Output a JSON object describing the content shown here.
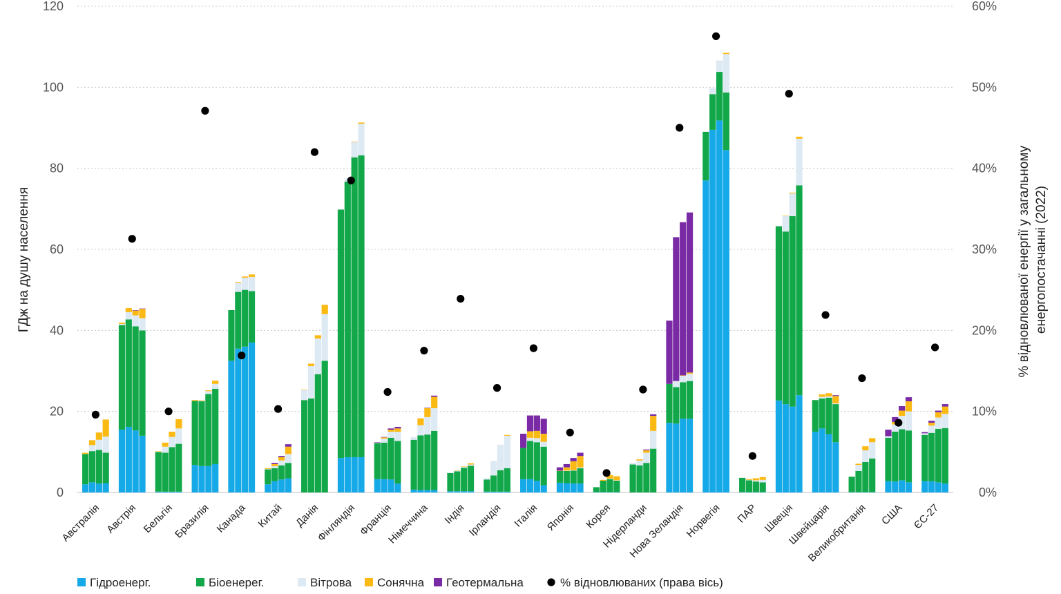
{
  "chart_data": {
    "type": "bar",
    "stacked": true,
    "ylabel": "ГДж на душу населення",
    "ylabel_right": [
      "% відновлюваної енергії у загальному",
      "енергопостачанні (2022)"
    ],
    "ylim": [
      0,
      120
    ],
    "yticks": [
      "0",
      "20",
      "40",
      "60",
      "80",
      "100",
      "120"
    ],
    "y2lim": [
      0,
      60
    ],
    "y2ticks": [
      "0%",
      "10%",
      "20%",
      "30%",
      "40%",
      "50%",
      "60%"
    ],
    "grid": true,
    "legend_position": "bottom",
    "colors": {
      "hydro": "#16a9e8",
      "bio": "#12a84a",
      "wind": "#dde9f3",
      "solar": "#fbb913",
      "geo": "#7a2aa5",
      "share": "#000000"
    },
    "legend": [
      {
        "key": "hydro",
        "label": "Гідроенерг."
      },
      {
        "key": "bio",
        "label": "Біоенерег."
      },
      {
        "key": "wind",
        "label": "Вітрова"
      },
      {
        "key": "solar",
        "label": "Сонячна"
      },
      {
        "key": "geo",
        "label": "Геотермальна"
      },
      {
        "key": "share",
        "label": "% відновлюваних (права вісь)"
      }
    ],
    "countries": [
      {
        "name": "Австралія",
        "share": 9.6,
        "bars": [
          {
            "hydro": 2,
            "bio": 7.5,
            "wind": 0,
            "solar": 0.3,
            "geo": 0
          },
          {
            "hydro": 2.5,
            "bio": 7.7,
            "wind": 1.5,
            "solar": 1.2,
            "geo": 0
          },
          {
            "hydro": 2.2,
            "bio": 8.3,
            "wind": 2.5,
            "solar": 1.8,
            "geo": 0
          },
          {
            "hydro": 2.3,
            "bio": 7.5,
            "wind": 4.0,
            "solar": 4.2,
            "geo": 0
          }
        ]
      },
      {
        "name": "Австрія",
        "share": 31.3,
        "bars": [
          {
            "hydro": 15.5,
            "bio": 25.8,
            "wind": 0.3,
            "solar": 0.3,
            "geo": 0
          },
          {
            "hydro": 16.2,
            "bio": 26.5,
            "wind": 1.8,
            "solar": 1.0,
            "geo": 0
          },
          {
            "hydro": 15.3,
            "bio": 25.7,
            "wind": 2.7,
            "solar": 1.2,
            "geo": 0.1
          },
          {
            "hydro": 14.0,
            "bio": 26.0,
            "wind": 3.0,
            "solar": 2.3,
            "geo": 0.1
          }
        ]
      },
      {
        "name": "Бельгія",
        "share": 10.0,
        "bars": [
          {
            "hydro": 0.2,
            "bio": 9.8,
            "wind": 0.1,
            "solar": 0.1,
            "geo": 0
          },
          {
            "hydro": 0.2,
            "bio": 9.6,
            "wind": 1.5,
            "solar": 1.0,
            "geo": 0
          },
          {
            "hydro": 0.2,
            "bio": 11.0,
            "wind": 2.5,
            "solar": 1.3,
            "geo": 0
          },
          {
            "hydro": 0.2,
            "bio": 11.8,
            "wind": 3.8,
            "solar": 2.3,
            "geo": 0
          }
        ]
      },
      {
        "name": "Бразилія",
        "share": 47.1,
        "bars": [
          {
            "hydro": 6.8,
            "bio": 15.8,
            "wind": 0,
            "solar": 0.2,
            "geo": 0
          },
          {
            "hydro": 6.5,
            "bio": 16.0,
            "wind": 0.2,
            "solar": 0.1,
            "geo": 0
          },
          {
            "hydro": 6.5,
            "bio": 17.8,
            "wind": 0.7,
            "solar": 0.2,
            "geo": 0
          },
          {
            "hydro": 7.0,
            "bio": 18.6,
            "wind": 1.2,
            "solar": 0.8,
            "geo": 0
          }
        ]
      },
      {
        "name": "Канада",
        "share": 16.9,
        "bars": [
          {
            "hydro": 32.5,
            "bio": 12.5,
            "wind": 0,
            "solar": 0,
            "geo": 0
          },
          {
            "hydro": 35.5,
            "bio": 14.0,
            "wind": 2.2,
            "solar": 0.2,
            "geo": 0
          },
          {
            "hydro": 36.0,
            "bio": 14.0,
            "wind": 3.0,
            "solar": 0.3,
            "geo": 0
          },
          {
            "hydro": 37.0,
            "bio": 12.7,
            "wind": 3.5,
            "solar": 0.6,
            "geo": 0
          }
        ]
      },
      {
        "name": "Китай",
        "share": 10.3,
        "bars": [
          {
            "hydro": 2.0,
            "bio": 3.7,
            "wind": 0.1,
            "solar": 0.2,
            "geo": 0
          },
          {
            "hydro": 2.8,
            "bio": 3.2,
            "wind": 0.5,
            "solar": 0.5,
            "geo": 0.3
          },
          {
            "hydro": 3.2,
            "bio": 3.5,
            "wind": 1.2,
            "solar": 0.8,
            "geo": 0.3
          },
          {
            "hydro": 3.5,
            "bio": 3.8,
            "wind": 2.2,
            "solar": 1.8,
            "geo": 0.6
          }
        ]
      },
      {
        "name": "Данія",
        "share": 42.0,
        "bars": [
          {
            "hydro": 0,
            "bio": 22.8,
            "wind": 2.5,
            "solar": 0.1,
            "geo": 0
          },
          {
            "hydro": 0,
            "bio": 23.2,
            "wind": 8.0,
            "solar": 0.6,
            "geo": 0
          },
          {
            "hydro": 0,
            "bio": 29.2,
            "wind": 8.8,
            "solar": 0.8,
            "geo": 0
          },
          {
            "hydro": 0,
            "bio": 32.5,
            "wind": 11.5,
            "solar": 2.3,
            "geo": 0
          }
        ]
      },
      {
        "name": "Фінляндія",
        "share": 38.5,
        "bars": [
          {
            "hydro": 8.5,
            "bio": 61.3,
            "wind": 0.1,
            "solar": 0,
            "geo": 0
          },
          {
            "hydro": 8.7,
            "bio": 68.0,
            "wind": 0.8,
            "solar": 0,
            "geo": 0
          },
          {
            "hydro": 8.7,
            "bio": 74.0,
            "wind": 3.8,
            "solar": 0.1,
            "geo": 0
          },
          {
            "hydro": 8.7,
            "bio": 74.5,
            "wind": 7.8,
            "solar": 0.3,
            "geo": 0
          }
        ]
      },
      {
        "name": "Франція",
        "share": 12.4,
        "bars": [
          {
            "hydro": 3.3,
            "bio": 8.9,
            "wind": 0.1,
            "solar": 0,
            "geo": 0.1
          },
          {
            "hydro": 3.3,
            "bio": 9.0,
            "wind": 1.0,
            "solar": 0.3,
            "geo": 0.1
          },
          {
            "hydro": 3.2,
            "bio": 10.3,
            "wind": 1.5,
            "solar": 0.5,
            "geo": 0.3
          },
          {
            "hydro": 2.2,
            "bio": 10.5,
            "wind": 2.3,
            "solar": 0.8,
            "geo": 0.4
          }
        ]
      },
      {
        "name": "Німеччина",
        "share": 17.5,
        "bars": [
          {
            "hydro": 0.7,
            "bio": 12.3,
            "wind": 0.7,
            "solar": 0,
            "geo": 0
          },
          {
            "hydro": 0.6,
            "bio": 13.5,
            "wind": 2.5,
            "solar": 1.7,
            "geo": 0
          },
          {
            "hydro": 0.6,
            "bio": 13.7,
            "wind": 4.3,
            "solar": 2.2,
            "geo": 0.1
          },
          {
            "hydro": 0.6,
            "bio": 14.6,
            "wind": 5.6,
            "solar": 2.8,
            "geo": 0.3
          }
        ]
      },
      {
        "name": "Індія",
        "share": 23.9,
        "bars": [
          {
            "hydro": 0.3,
            "bio": 4.5,
            "wind": 0.1,
            "solar": 0,
            "geo": 0
          },
          {
            "hydro": 0.3,
            "bio": 4.9,
            "wind": 0.2,
            "solar": 0.1,
            "geo": 0
          },
          {
            "hydro": 0.3,
            "bio": 5.8,
            "wind": 0.2,
            "solar": 0.1,
            "geo": 0
          },
          {
            "hydro": 0.3,
            "bio": 6.3,
            "wind": 0.3,
            "solar": 0.3,
            "geo": 0
          }
        ]
      },
      {
        "name": "Ірландія",
        "share": 12.9,
        "bars": [
          {
            "hydro": 0.2,
            "bio": 3.0,
            "wind": 0.3,
            "solar": 0,
            "geo": 0
          },
          {
            "hydro": 0.2,
            "bio": 4.0,
            "wind": 3.6,
            "solar": 0,
            "geo": 0
          },
          {
            "hydro": 0.2,
            "bio": 5.3,
            "wind": 6.3,
            "solar": 0,
            "geo": 0
          },
          {
            "hydro": 0.2,
            "bio": 5.8,
            "wind": 8.0,
            "solar": 0.2,
            "geo": 0
          }
        ]
      },
      {
        "name": "Італія",
        "share": 17.8,
        "bars": [
          {
            "hydro": 3.3,
            "bio": 7.7,
            "wind": 0,
            "solar": 0,
            "geo": 3.5
          },
          {
            "hydro": 3.3,
            "bio": 9.4,
            "wind": 0.8,
            "solar": 1.6,
            "geo": 3.9
          },
          {
            "hydro": 2.9,
            "bio": 9.5,
            "wind": 1.0,
            "solar": 1.8,
            "geo": 3.8
          },
          {
            "hydro": 1.8,
            "bio": 9.5,
            "wind": 1.2,
            "solar": 2.0,
            "geo": 3.7
          }
        ]
      },
      {
        "name": "Японія",
        "share": 7.4,
        "bars": [
          {
            "hydro": 2.4,
            "bio": 2.9,
            "wind": 0,
            "solar": 0.1,
            "geo": 0.8
          },
          {
            "hydro": 2.3,
            "bio": 3.0,
            "wind": 0.1,
            "solar": 0.8,
            "geo": 0.8
          },
          {
            "hydro": 2.2,
            "bio": 3.2,
            "wind": 0.1,
            "solar": 2.2,
            "geo": 0.8
          },
          {
            "hydro": 2.2,
            "bio": 3.8,
            "wind": 0.2,
            "solar": 2.8,
            "geo": 0.8
          }
        ]
      },
      {
        "name": "Корея",
        "share": 2.4,
        "bars": [
          {
            "hydro": 0.1,
            "bio": 1.2,
            "wind": 0,
            "solar": 0,
            "geo": 0
          },
          {
            "hydro": 0.1,
            "bio": 2.8,
            "wind": 0,
            "solar": 0.2,
            "geo": 0
          },
          {
            "hydro": 0.1,
            "bio": 3.2,
            "wind": 0.1,
            "solar": 0.9,
            "geo": 0
          },
          {
            "hydro": 0.1,
            "bio": 2.8,
            "wind": 0.1,
            "solar": 1.0,
            "geo": 0
          }
        ]
      },
      {
        "name": "Нідерланди",
        "share": 12.7,
        "bars": [
          {
            "hydro": 0,
            "bio": 6.9,
            "wind": 0.4,
            "solar": 0,
            "geo": 0
          },
          {
            "hydro": 0,
            "bio": 6.7,
            "wind": 1.2,
            "solar": 0.3,
            "geo": 0
          },
          {
            "hydro": 0,
            "bio": 7.3,
            "wind": 2.5,
            "solar": 0.6,
            "geo": 0.2
          },
          {
            "hydro": 0,
            "bio": 10.8,
            "wind": 4.4,
            "solar": 3.7,
            "geo": 0.4
          }
        ]
      },
      {
        "name": "Нова Зеландія",
        "share": 45.0,
        "bars": [
          {
            "hydro": 17.2,
            "bio": 9.6,
            "wind": 0,
            "solar": 0,
            "geo": 15.6
          },
          {
            "hydro": 17.0,
            "bio": 9.0,
            "wind": 1.5,
            "solar": 0,
            "geo": 35.5
          },
          {
            "hydro": 18.2,
            "bio": 9.0,
            "wind": 1.6,
            "solar": 0.1,
            "geo": 37.8
          },
          {
            "hydro": 18.2,
            "bio": 9.3,
            "wind": 1.8,
            "solar": 0.3,
            "geo": 39.5
          }
        ]
      },
      {
        "name": "Норвегія",
        "share": 56.3,
        "bars": [
          {
            "hydro": 77.0,
            "bio": 12.0,
            "wind": 0,
            "solar": 0,
            "geo": 0
          },
          {
            "hydro": 89.5,
            "bio": 8.8,
            "wind": 1.5,
            "solar": 0,
            "geo": 0
          },
          {
            "hydro": 91.8,
            "bio": 12.0,
            "wind": 2.8,
            "solar": 0,
            "geo": 0
          },
          {
            "hydro": 84.5,
            "bio": 14.2,
            "wind": 9.5,
            "solar": 0.3,
            "geo": 0
          }
        ]
      },
      {
        "name": "ПАР",
        "share": 4.5,
        "bars": [
          {
            "hydro": 0.1,
            "bio": 3.5,
            "wind": 0,
            "solar": 0,
            "geo": 0
          },
          {
            "hydro": 0.1,
            "bio": 2.9,
            "wind": 0.1,
            "solar": 0.2,
            "geo": 0
          },
          {
            "hydro": 0.1,
            "bio": 2.6,
            "wind": 0.3,
            "solar": 0.5,
            "geo": 0
          },
          {
            "hydro": 0.1,
            "bio": 2.4,
            "wind": 0.6,
            "solar": 0.7,
            "geo": 0
          }
        ]
      },
      {
        "name": "Швеція",
        "share": 49.2,
        "bars": [
          {
            "hydro": 22.7,
            "bio": 43.0,
            "wind": 0.1,
            "solar": 0,
            "geo": 0
          },
          {
            "hydro": 21.8,
            "bio": 42.6,
            "wind": 3.8,
            "solar": 0.1,
            "geo": 0
          },
          {
            "hydro": 21.2,
            "bio": 47.0,
            "wind": 5.6,
            "solar": 0.2,
            "geo": 0
          },
          {
            "hydro": 24.0,
            "bio": 51.8,
            "wind": 11.5,
            "solar": 0.5,
            "geo": 0
          }
        ]
      },
      {
        "name": "Швейцарія",
        "share": 21.9,
        "bars": [
          {
            "hydro": 15.0,
            "bio": 7.8,
            "wind": 0,
            "solar": 0,
            "geo": 0
          },
          {
            "hydro": 15.8,
            "bio": 7.4,
            "wind": 0.4,
            "solar": 0.6,
            "geo": 0
          },
          {
            "hydro": 14.4,
            "bio": 9.0,
            "wind": 0.3,
            "solar": 0.8,
            "geo": 0
          },
          {
            "hydro": 12.4,
            "bio": 9.4,
            "wind": 0.2,
            "solar": 1.8,
            "geo": 0.2
          }
        ]
      },
      {
        "name": "Великобританія",
        "share": 14.1,
        "bars": [
          {
            "hydro": 0.1,
            "bio": 3.8,
            "wind": 0,
            "solar": 0,
            "geo": 0
          },
          {
            "hydro": 0.1,
            "bio": 5.2,
            "wind": 1.5,
            "solar": 0.3,
            "geo": 0
          },
          {
            "hydro": 0.1,
            "bio": 7.4,
            "wind": 2.9,
            "solar": 1.0,
            "geo": 0
          },
          {
            "hydro": 0.1,
            "bio": 8.3,
            "wind": 4.0,
            "solar": 1.0,
            "geo": 0
          }
        ]
      },
      {
        "name": "США",
        "share": 8.6,
        "bars": [
          {
            "hydro": 2.8,
            "bio": 10.7,
            "wind": 0.4,
            "solar": 0,
            "geo": 1.6
          },
          {
            "hydro": 2.7,
            "bio": 12.3,
            "wind": 1.8,
            "solar": 0.6,
            "geo": 1.2
          },
          {
            "hydro": 3.0,
            "bio": 12.6,
            "wind": 3.3,
            "solar": 1.3,
            "geo": 1.1
          },
          {
            "hydro": 2.5,
            "bio": 12.8,
            "wind": 4.7,
            "solar": 2.5,
            "geo": 1.0
          }
        ]
      },
      {
        "name": "ЄС-27",
        "share": 17.9,
        "bars": [
          {
            "hydro": 2.8,
            "bio": 11.4,
            "wind": 0.4,
            "solar": 0,
            "geo": 0.3
          },
          {
            "hydro": 2.8,
            "bio": 11.9,
            "wind": 1.8,
            "solar": 0.7,
            "geo": 0.5
          },
          {
            "hydro": 2.5,
            "bio": 13.2,
            "wind": 2.8,
            "solar": 1.3,
            "geo": 0.4
          },
          {
            "hydro": 2.2,
            "bio": 13.7,
            "wind": 3.5,
            "solar": 1.8,
            "geo": 0.6
          }
        ]
      }
    ]
  }
}
